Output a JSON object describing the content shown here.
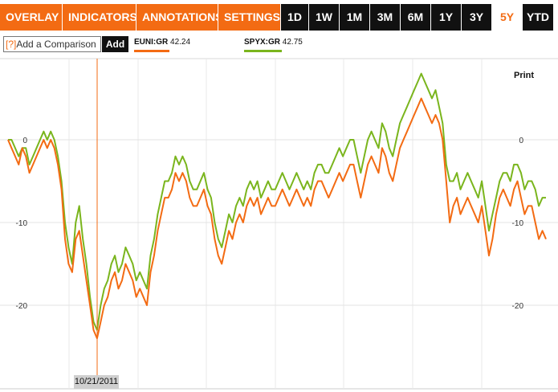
{
  "toolbar": {
    "menus": [
      {
        "label": "OVERLAY"
      },
      {
        "label": "INDICATORS"
      },
      {
        "label": "ANNOTATIONS"
      },
      {
        "label": "SETTINGS"
      }
    ],
    "caret": "▼",
    "ranges": [
      "1D",
      "1W",
      "1M",
      "3M",
      "6M",
      "1Y",
      "3Y",
      "5Y",
      "YTD"
    ],
    "active_range": "5Y"
  },
  "comparison": {
    "help": "[?]",
    "placeholder": "Add a Comparison",
    "add_label": "Add"
  },
  "legend": [
    {
      "symbol": "EUNI:GR",
      "value": "42.24",
      "color": "#f36b13"
    },
    {
      "symbol": "SPYX:GR",
      "value": "42.75",
      "color": "#7ab51d"
    }
  ],
  "print_label": "Print",
  "crosshair_date": "10/21/2011",
  "colors": {
    "accent": "#f36b13",
    "toolbar_dark": "#111111",
    "grid": "#e3e3e3"
  },
  "chart_data": {
    "type": "line",
    "y_unit": "percent change",
    "ylim": [
      -26,
      10
    ],
    "y_ticks": [
      0,
      -10,
      -20
    ],
    "x_range_label": "5Y",
    "series": [
      {
        "name": "EUNI:GR",
        "color": "#f36b13",
        "values": [
          0,
          -1,
          -2,
          -3,
          -1,
          -2,
          -4,
          -3,
          -2,
          -1,
          0,
          -1,
          0,
          -1,
          -3,
          -6,
          -12,
          -15,
          -16,
          -12,
          -11,
          -14,
          -17,
          -20,
          -23,
          -24,
          -22,
          -20,
          -19,
          -17,
          -16,
          -18,
          -17,
          -15,
          -16,
          -17,
          -19,
          -18,
          -19,
          -20,
          -16,
          -14,
          -11,
          -9,
          -7,
          -7,
          -6,
          -4,
          -5,
          -4,
          -5,
          -7,
          -8,
          -8,
          -7,
          -6,
          -8,
          -9,
          -12,
          -14,
          -15,
          -13,
          -11,
          -12,
          -10,
          -9,
          -10,
          -8,
          -7,
          -8,
          -7,
          -9,
          -8,
          -7,
          -8,
          -8,
          -7,
          -6,
          -7,
          -8,
          -7,
          -6,
          -7,
          -8,
          -7,
          -8,
          -6,
          -5,
          -5,
          -6,
          -7,
          -6,
          -5,
          -4,
          -5,
          -4,
          -3,
          -3,
          -5,
          -7,
          -5,
          -3,
          -2,
          -3,
          -4,
          -1,
          -2,
          -4,
          -5,
          -3,
          -1,
          0,
          1,
          2,
          3,
          4,
          5,
          4,
          3,
          2,
          3,
          2,
          0,
          -5,
          -10,
          -8,
          -7,
          -9,
          -8,
          -7,
          -8,
          -9,
          -10,
          -8,
          -11,
          -14,
          -12,
          -9,
          -7,
          -6,
          -7,
          -8,
          -6,
          -5,
          -7,
          -9,
          -8,
          -8,
          -10,
          -12,
          -11,
          -12
        ]
      },
      {
        "name": "SPYX:GR",
        "color": "#7ab51d",
        "values": [
          0,
          0,
          -1,
          -2,
          -1,
          -1,
          -3,
          -2,
          -1,
          0,
          1,
          0,
          1,
          0,
          -2,
          -5,
          -10,
          -13,
          -15,
          -10,
          -8,
          -12,
          -15,
          -19,
          -22,
          -23,
          -20,
          -18,
          -17,
          -15,
          -14,
          -16,
          -15,
          -13,
          -14,
          -15,
          -17,
          -16,
          -17,
          -18,
          -14,
          -12,
          -9,
          -7,
          -5,
          -5,
          -4,
          -2,
          -3,
          -2,
          -3,
          -5,
          -6,
          -6,
          -5,
          -4,
          -6,
          -7,
          -10,
          -12,
          -13,
          -11,
          -9,
          -10,
          -8,
          -7,
          -8,
          -6,
          -5,
          -6,
          -5,
          -7,
          -6,
          -5,
          -6,
          -6,
          -5,
          -4,
          -5,
          -6,
          -5,
          -4,
          -5,
          -6,
          -5,
          -6,
          -4,
          -3,
          -3,
          -4,
          -4,
          -3,
          -2,
          -1,
          -2,
          -1,
          0,
          0,
          -2,
          -4,
          -2,
          0,
          1,
          0,
          -1,
          2,
          1,
          -1,
          -2,
          0,
          2,
          3,
          4,
          5,
          6,
          7,
          8,
          7,
          6,
          5,
          6,
          4,
          2,
          -3,
          -5,
          -5,
          -4,
          -6,
          -5,
          -4,
          -5,
          -6,
          -7,
          -5,
          -8,
          -11,
          -9,
          -7,
          -5,
          -4,
          -4,
          -5,
          -3,
          -3,
          -4,
          -6,
          -5,
          -5,
          -6,
          -8,
          -7,
          -7
        ]
      }
    ]
  }
}
